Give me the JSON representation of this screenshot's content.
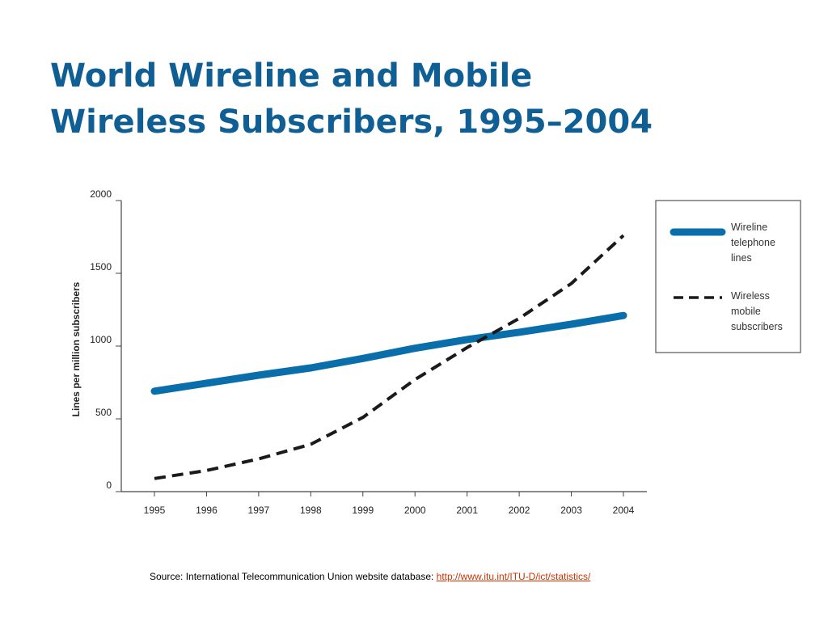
{
  "title": {
    "line1": "World Wireline and Mobile",
    "line2": "Wireless Subscribers, 1995–2004"
  },
  "chart_data": {
    "type": "line",
    "x": [
      1995,
      1996,
      1997,
      1998,
      1999,
      2000,
      2001,
      2002,
      2003,
      2004
    ],
    "categories": [
      "1995",
      "1996",
      "1997",
      "1998",
      "1999",
      "2000",
      "2001",
      "2002",
      "2003",
      "2004"
    ],
    "ylabel": "Lines per million subscribers",
    "xlabel": "",
    "ylim": [
      0,
      2000
    ],
    "yticks": [
      "0",
      "500",
      "1000",
      "1500",
      "2000"
    ],
    "grid": false,
    "legend_position": "right",
    "series": [
      {
        "name": "Wireline telephone lines",
        "label_lines": [
          "Wireline",
          "telephone",
          "lines"
        ],
        "style": "solid",
        "color": "#0a6eaa",
        "values": [
          690,
          745,
          800,
          850,
          915,
          985,
          1045,
          1095,
          1150,
          1210
        ]
      },
      {
        "name": "Wireless mobile subscribers",
        "label_lines": [
          "Wireless",
          "mobile",
          "subscribers"
        ],
        "style": "dashed",
        "color": "#1a1a1a",
        "values": [
          90,
          145,
          225,
          325,
          510,
          770,
          990,
          1190,
          1430,
          1760
        ]
      }
    ]
  },
  "source": {
    "label": "Source: International Telecommunication Union website database: ",
    "link_text": "http://www.itu.int/ITU-D/ict/statistics/"
  }
}
